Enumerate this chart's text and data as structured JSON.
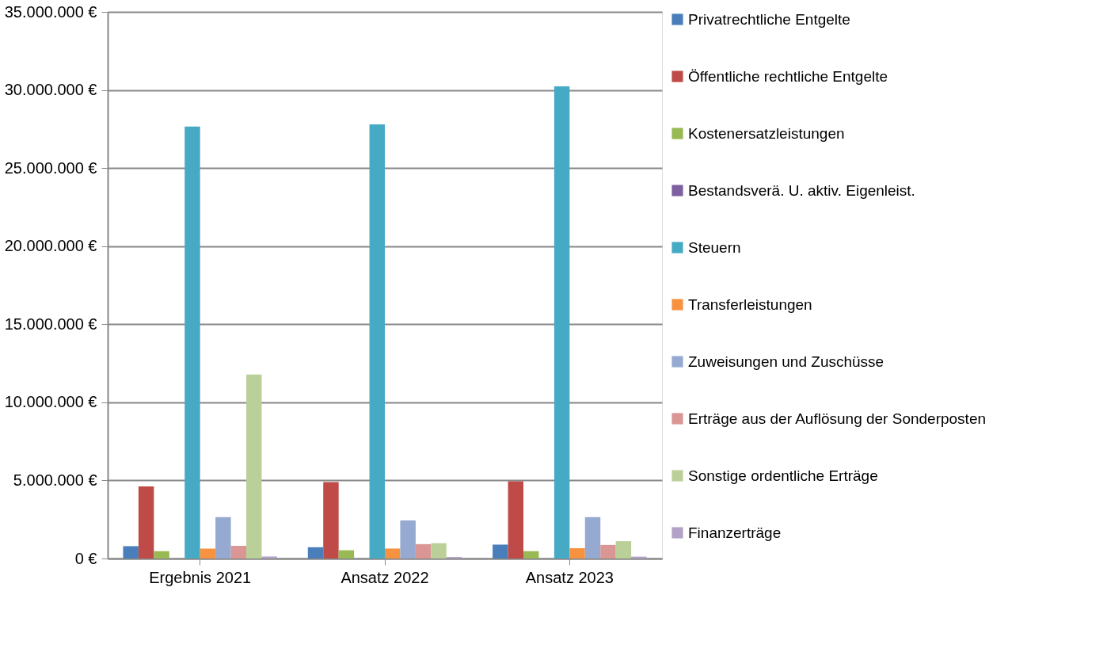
{
  "chart_data": {
    "type": "bar",
    "categories": [
      "Ergebnis 2021",
      "Ansatz 2022",
      "Ansatz 2023"
    ],
    "series": [
      {
        "name": "Privatrechtliche Entgelte",
        "color": "#4a7ebb",
        "values": [
          790000,
          720000,
          890000
        ]
      },
      {
        "name": "Öffentliche rechtliche Entgelte",
        "color": "#be4b48",
        "values": [
          4610000,
          4890000,
          4940000
        ]
      },
      {
        "name": "Kostenersatzleistungen",
        "color": "#98b954",
        "values": [
          470000,
          530000,
          470000
        ]
      },
      {
        "name": "Bestandsverä. U. aktiv. Eigenleist.",
        "color": "#7d60a0",
        "values": [
          0,
          0,
          0
        ]
      },
      {
        "name": "Steuern",
        "color": "#46aac5",
        "values": [
          27660000,
          27800000,
          30230000
        ]
      },
      {
        "name": "Transferleistungen",
        "color": "#f69240",
        "values": [
          640000,
          640000,
          660000
        ]
      },
      {
        "name": "Zuweisungen und Zuschüsse",
        "color": "#95a9d1",
        "values": [
          2650000,
          2440000,
          2650000
        ]
      },
      {
        "name": "Erträge aus der Auflösung der Sonderposten",
        "color": "#d99694",
        "values": [
          810000,
          920000,
          870000
        ]
      },
      {
        "name": "Sonstige ordentliche Erträge",
        "color": "#bbd098",
        "values": [
          11780000,
          980000,
          1110000
        ]
      },
      {
        "name": "Finanzerträge",
        "color": "#b3a2c7",
        "values": [
          130000,
          100000,
          120000
        ]
      }
    ],
    "ylim": [
      0,
      35000000
    ],
    "yticks": [
      {
        "value": 0,
        "label": "0 €"
      },
      {
        "value": 5000000,
        "label": "5.000.000 €"
      },
      {
        "value": 10000000,
        "label": "10.000.000 €"
      },
      {
        "value": 15000000,
        "label": "15.000.000 €"
      },
      {
        "value": 20000000,
        "label": "20.000.000 €"
      },
      {
        "value": 25000000,
        "label": "25.000.000 €"
      },
      {
        "value": 30000000,
        "label": "30.000.000 €"
      },
      {
        "value": 35000000,
        "label": "35.000.000 €"
      }
    ],
    "grid": "y",
    "legend": "right"
  }
}
